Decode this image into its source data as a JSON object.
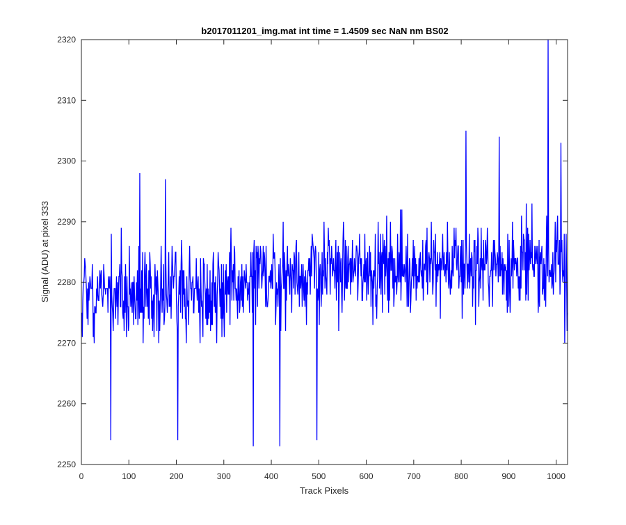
{
  "chart_data": {
    "type": "line",
    "title": "b2017011201_img.mat int time = 1.4509 sec  NaN nm BS02",
    "xlabel": "Track Pixels",
    "ylabel": "Signal (ADU) at pixel 333",
    "xlim": [
      0,
      1024
    ],
    "ylim": [
      2250,
      2320
    ],
    "xticks": [
      0,
      100,
      200,
      300,
      400,
      500,
      600,
      700,
      800,
      900,
      1000
    ],
    "yticks": [
      2250,
      2260,
      2270,
      2280,
      2290,
      2300,
      2310,
      2320
    ],
    "grid": false,
    "legend": "none",
    "series_color": "#0000ff",
    "axes_color": "#262626",
    "background_color": "#ffffff",
    "series": [
      {
        "x_start": 1,
        "x_step": 1,
        "count": 1024,
        "mean_start": 2278,
        "mean_end": 2283,
        "noise_amplitude": 8,
        "notable_points": [
          {
            "x": 62,
            "y": 2254
          },
          {
            "x": 123,
            "y": 2298
          },
          {
            "x": 177,
            "y": 2297
          },
          {
            "x": 203,
            "y": 2254
          },
          {
            "x": 362,
            "y": 2253
          },
          {
            "x": 418,
            "y": 2253
          },
          {
            "x": 496,
            "y": 2254
          },
          {
            "x": 810,
            "y": 2305
          },
          {
            "x": 880,
            "y": 2304
          },
          {
            "x": 983,
            "y": 2320
          },
          {
            "x": 1010,
            "y": 2303
          },
          {
            "x": 1018,
            "y": 2270
          },
          {
            "x": 1024,
            "y": 2275
          }
        ]
      }
    ]
  }
}
